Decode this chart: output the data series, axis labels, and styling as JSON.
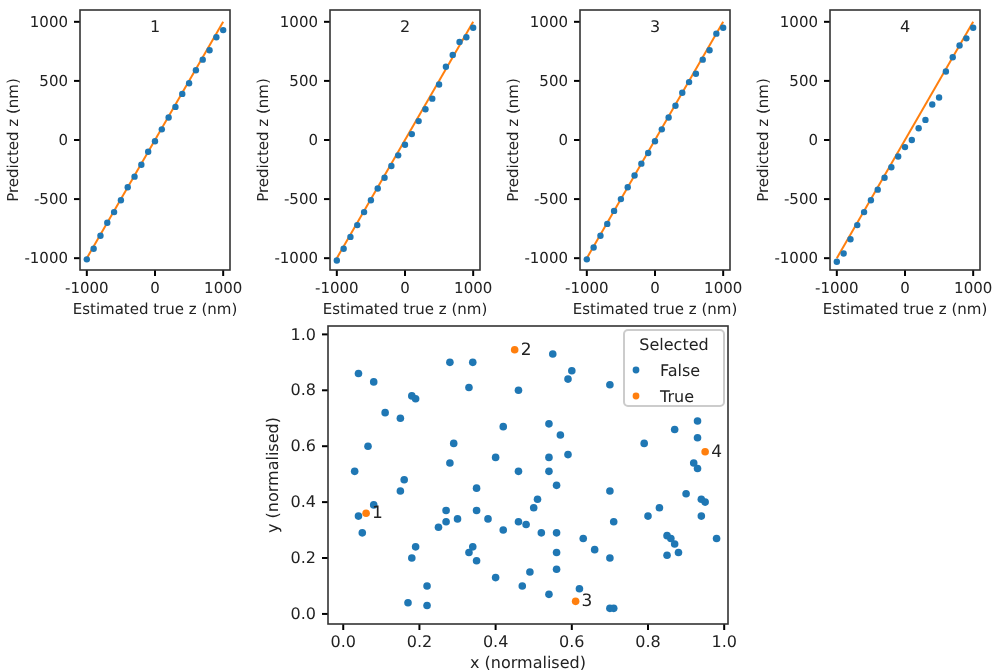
{
  "chart_data": [
    {
      "type": "scatter",
      "title": "1",
      "xlabel": "Estimated true z (nm)",
      "ylabel": "Predicted z (nm)",
      "xlim": [
        -1100,
        1100
      ],
      "ylim": [
        -1100,
        1100
      ],
      "xticks": [
        -1000,
        0,
        1000
      ],
      "yticks": [
        -1000,
        -500,
        0,
        500,
        1000
      ],
      "marker": "circle",
      "series": [
        {
          "color": "#1f77b4",
          "x": [
            -1000,
            -900,
            -800,
            -700,
            -600,
            -500,
            -400,
            -300,
            -200,
            -100,
            0,
            100,
            200,
            300,
            400,
            500,
            600,
            700,
            800,
            900,
            1000
          ],
          "values": [
            -1010,
            -920,
            -810,
            -700,
            -610,
            -510,
            -400,
            -310,
            -210,
            -100,
            -10,
            90,
            190,
            280,
            390,
            480,
            590,
            680,
            760,
            870,
            930
          ]
        },
        {
          "type": "line",
          "marker": "none",
          "color": "#ff7f0e",
          "x": [
            -1000,
            1000
          ],
          "values": [
            -1000,
            1000
          ]
        }
      ]
    },
    {
      "type": "scatter",
      "title": "2",
      "xlabel": "Estimated true z (nm)",
      "ylabel": "Predicted z (nm)",
      "xlim": [
        -1100,
        1100
      ],
      "ylim": [
        -1100,
        1100
      ],
      "xticks": [
        -1000,
        0,
        1000
      ],
      "yticks": [
        -1000,
        -500,
        0,
        500,
        1000
      ],
      "marker": "circle",
      "series": [
        {
          "color": "#1f77b4",
          "x": [
            -1000,
            -900,
            -800,
            -700,
            -600,
            -500,
            -400,
            -300,
            -200,
            -100,
            0,
            100,
            200,
            300,
            400,
            500,
            600,
            700,
            800,
            900,
            1000
          ],
          "values": [
            -1020,
            -920,
            -820,
            -720,
            -610,
            -510,
            -410,
            -320,
            -220,
            -130,
            -40,
            50,
            160,
            260,
            350,
            470,
            620,
            720,
            830,
            870,
            950
          ]
        },
        {
          "type": "line",
          "marker": "none",
          "color": "#ff7f0e",
          "x": [
            -1000,
            1000
          ],
          "values": [
            -1000,
            1000
          ]
        }
      ]
    },
    {
      "type": "scatter",
      "title": "3",
      "xlabel": "Estimated true z (nm)",
      "ylabel": "Predicted z (nm)",
      "xlim": [
        -1100,
        1100
      ],
      "ylim": [
        -1100,
        1100
      ],
      "xticks": [
        -1000,
        0,
        1000
      ],
      "yticks": [
        -1000,
        -500,
        0,
        500,
        1000
      ],
      "marker": "circle",
      "series": [
        {
          "color": "#1f77b4",
          "x": [
            -1000,
            -900,
            -800,
            -700,
            -600,
            -500,
            -400,
            -300,
            -200,
            -100,
            0,
            100,
            200,
            300,
            400,
            500,
            600,
            700,
            800,
            900,
            1000
          ],
          "values": [
            -1010,
            -910,
            -810,
            -710,
            -600,
            -500,
            -400,
            -300,
            -200,
            -110,
            -10,
            90,
            190,
            290,
            400,
            490,
            560,
            680,
            760,
            900,
            950
          ]
        },
        {
          "type": "line",
          "marker": "none",
          "color": "#ff7f0e",
          "x": [
            -1000,
            1000
          ],
          "values": [
            -1000,
            1000
          ]
        }
      ]
    },
    {
      "type": "scatter",
      "title": "4",
      "xlabel": "Estimated true z (nm)",
      "ylabel": "Predicted z (nm)",
      "xlim": [
        -1100,
        1100
      ],
      "ylim": [
        -1100,
        1100
      ],
      "xticks": [
        -1000,
        0,
        1000
      ],
      "yticks": [
        -1000,
        -500,
        0,
        500,
        1000
      ],
      "marker": "circle",
      "series": [
        {
          "color": "#1f77b4",
          "x": [
            -1000,
            -900,
            -800,
            -700,
            -600,
            -500,
            -400,
            -300,
            -200,
            -100,
            0,
            100,
            200,
            300,
            400,
            500,
            600,
            700,
            800,
            900,
            1000
          ],
          "values": [
            -1030,
            -960,
            -840,
            -720,
            -610,
            -510,
            -420,
            -320,
            -230,
            -140,
            -60,
            0,
            100,
            170,
            300,
            360,
            580,
            700,
            800,
            860,
            950
          ]
        },
        {
          "type": "line",
          "marker": "none",
          "color": "#ff7f0e",
          "x": [
            -1000,
            1000
          ],
          "values": [
            -1000,
            1000
          ]
        }
      ]
    },
    {
      "type": "scatter",
      "xlabel": "x (normalised)",
      "ylabel": "y (normalised)",
      "legend_title": "Selected",
      "legend": "top right",
      "xlim": [
        -0.04,
        1.01
      ],
      "ylim": [
        -0.036,
        1.03
      ],
      "xticks": [
        {
          "value": 0,
          "label": "0.0"
        },
        0.2,
        0.4,
        0.6,
        0.8,
        {
          "value": 1,
          "label": "1.0"
        }
      ],
      "yticks": [
        {
          "value": 0,
          "label": "0.0"
        },
        0.2,
        0.4,
        0.6,
        0.8,
        {
          "value": 1,
          "label": "1.0"
        }
      ],
      "marker": "circle",
      "series": [
        {
          "name": "False",
          "color": "#1f77b4",
          "x": [
            0.04,
            0.08,
            0.11,
            0.15,
            0.18,
            0.19,
            0.065,
            0.03,
            0.16,
            0.15,
            0.28,
            0.34,
            0.33,
            0.46,
            0.55,
            0.6,
            0.59,
            0.7,
            0.42,
            0.54,
            0.28,
            0.29,
            0.4,
            0.54,
            0.54,
            0.59,
            0.57,
            0.46,
            0.56,
            0.35,
            0.79,
            0.87,
            0.93,
            0.93,
            0.92,
            0.93,
            0.9,
            0.95,
            0.94,
            0.94,
            0.98,
            0.83,
            0.8,
            0.7,
            0.71,
            0.7,
            0.7,
            0.71,
            0.62,
            0.86,
            0.87,
            0.85,
            0.85,
            0.88,
            0.66,
            0.63,
            0.56,
            0.56,
            0.56,
            0.54,
            0.49,
            0.48,
            0.52,
            0.51,
            0.5,
            0.46,
            0.42,
            0.38,
            0.35,
            0.34,
            0.33,
            0.35,
            0.4,
            0.47,
            0.3,
            0.27,
            0.27,
            0.25,
            0.19,
            0.18,
            0.22,
            0.22,
            0.17,
            0.04,
            0.05,
            0.08
          ],
          "values": [
            0.86,
            0.83,
            0.72,
            0.7,
            0.78,
            0.77,
            0.6,
            0.51,
            0.48,
            0.44,
            0.9,
            0.9,
            0.81,
            0.8,
            0.93,
            0.87,
            0.84,
            0.82,
            0.67,
            0.68,
            0.54,
            0.61,
            0.56,
            0.56,
            0.51,
            0.57,
            0.64,
            0.51,
            0.46,
            0.45,
            0.61,
            0.66,
            0.69,
            0.63,
            0.54,
            0.52,
            0.43,
            0.4,
            0.41,
            0.35,
            0.27,
            0.38,
            0.35,
            0.44,
            0.33,
            0.2,
            0.02,
            0.02,
            0.09,
            0.27,
            0.25,
            0.28,
            0.21,
            0.22,
            0.23,
            0.27,
            0.29,
            0.22,
            0.16,
            0.07,
            0.15,
            0.32,
            0.29,
            0.41,
            0.38,
            0.33,
            0.3,
            0.34,
            0.37,
            0.24,
            0.22,
            0.19,
            0.13,
            0.1,
            0.34,
            0.37,
            0.33,
            0.31,
            0.24,
            0.2,
            0.1,
            0.03,
            0.04,
            0.35,
            0.29,
            0.39
          ]
        },
        {
          "name": "True",
          "color": "#ff7f0e",
          "x": [
            0.06,
            0.45,
            0.61,
            0.95
          ],
          "values": [
            0.36,
            0.945,
            0.045,
            0.58
          ]
        }
      ],
      "annotations": [
        {
          "text": "1",
          "x": 0.06,
          "y": 0.36
        },
        {
          "text": "2",
          "x": 0.45,
          "y": 0.945
        },
        {
          "text": "3",
          "x": 0.61,
          "y": 0.045
        },
        {
          "text": "4",
          "x": 0.95,
          "y": 0.58
        }
      ]
    }
  ]
}
